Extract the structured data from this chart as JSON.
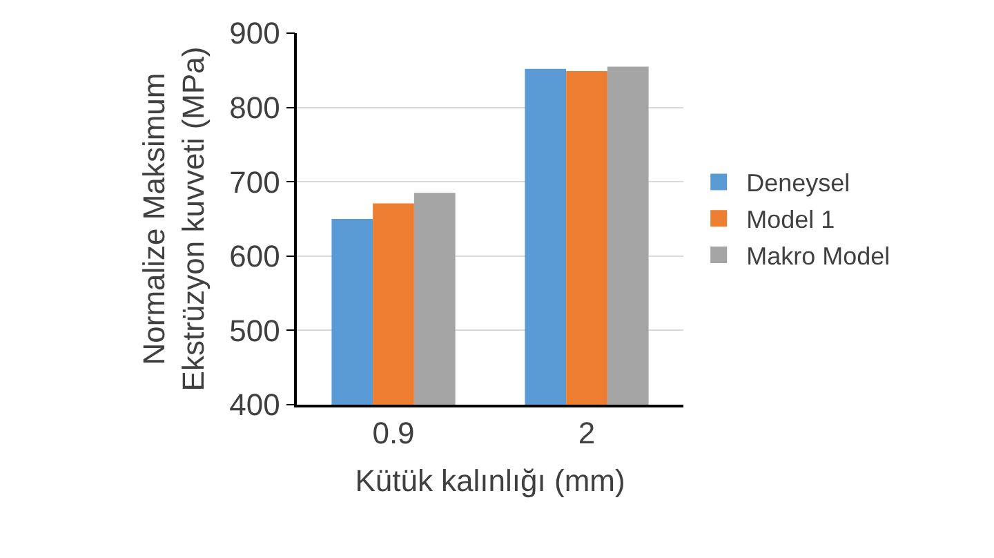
{
  "chart_data": {
    "type": "bar",
    "xlabel": "Kütük kalınlığı (mm)",
    "ylabel": "Normalize Maksimum Ekstrüzyon kuvveti (MPa)",
    "categories": [
      "0.9",
      "2"
    ],
    "series": [
      {
        "name": "Deneysel",
        "color": "#5b9bd5",
        "values": [
          650,
          852
        ]
      },
      {
        "name": "Model 1",
        "color": "#ed7d31",
        "values": [
          671,
          849
        ]
      },
      {
        "name": "Makro Model",
        "color": "#a5a5a5",
        "values": [
          685,
          855
        ]
      }
    ],
    "ylim": [
      400,
      900
    ],
    "yticks": [
      400,
      500,
      600,
      700,
      800,
      900
    ],
    "grid": "y",
    "legend": "right"
  }
}
